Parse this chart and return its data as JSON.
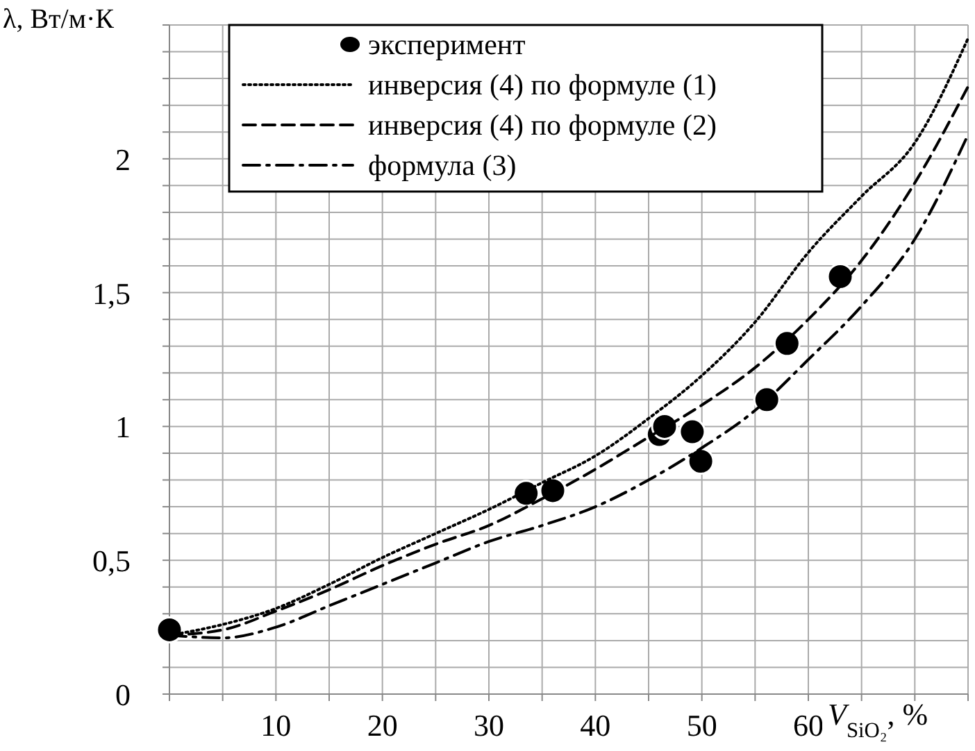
{
  "chart_data": {
    "type": "line",
    "xlabel": "V$_{SiO₂}$, %",
    "ylabel": "λ, Вт/м·К",
    "xlim": [
      0,
      75
    ],
    "ylim": [
      0,
      2.5
    ],
    "xticks": [
      {
        "value": 0,
        "label": null
      },
      {
        "value": 5,
        "label": null
      },
      10,
      {
        "value": 15,
        "label": null
      },
      20,
      {
        "value": 25,
        "label": null
      },
      30,
      {
        "value": 35,
        "label": null
      },
      40,
      {
        "value": 45,
        "label": null
      },
      50,
      {
        "value": 55,
        "label": null
      },
      60,
      {
        "value": 65,
        "label": null
      },
      {
        "value": 70,
        "label": null
      },
      {
        "value": 75,
        "label": null
      }
    ],
    "yticks": [
      0,
      {
        "value": 0.1,
        "label": null
      },
      {
        "value": 0.2,
        "label": null
      },
      {
        "value": 0.3,
        "label": null
      },
      {
        "value": 0.4,
        "label": null
      },
      {
        "value": 0.5,
        "label": "0,5"
      },
      {
        "value": 0.6,
        "label": null
      },
      {
        "value": 0.7,
        "label": null
      },
      {
        "value": 0.8,
        "label": null
      },
      {
        "value": 0.9,
        "label": null
      },
      1,
      {
        "value": 1.1,
        "label": null
      },
      {
        "value": 1.2,
        "label": null
      },
      {
        "value": 1.3,
        "label": null
      },
      {
        "value": 1.4,
        "label": null
      },
      {
        "value": 1.5,
        "label": "1,5"
      },
      {
        "value": 1.6,
        "label": null
      },
      {
        "value": 1.7,
        "label": null
      },
      {
        "value": 1.8,
        "label": null
      },
      {
        "value": 1.9,
        "label": null
      },
      2,
      {
        "value": 2.1,
        "label": null
      },
      {
        "value": 2.2,
        "label": null
      },
      {
        "value": 2.3,
        "label": null
      },
      {
        "value": 2.4,
        "label": null
      },
      {
        "value": 2.5,
        "label": null
      }
    ],
    "grid": true,
    "legend": "top",
    "series": [
      {
        "name": "эксперимент",
        "type": "scatter",
        "marker": "circle",
        "color": "#000000",
        "x": [
          0,
          33.5,
          36,
          46,
          46.5,
          49.1,
          49.9,
          56.1,
          58,
          63
        ],
        "values": [
          0.24,
          0.75,
          0.76,
          0.97,
          1.0,
          0.98,
          0.87,
          1.1,
          1.31,
          1.56
        ]
      },
      {
        "name": "инверсия (4) по формуле (1)",
        "line_style": "dotted",
        "color": "#000000",
        "x": [
          0,
          5,
          10,
          15,
          20,
          25,
          30,
          35,
          40,
          45,
          50,
          55,
          60,
          65,
          70,
          75
        ],
        "values": [
          0.22,
          0.26,
          0.32,
          0.41,
          0.51,
          0.6,
          0.69,
          0.79,
          0.89,
          1.03,
          1.19,
          1.39,
          1.65,
          1.86,
          2.06,
          2.45
        ]
      },
      {
        "name": "инверсия (4) по формуле (2)",
        "line_style": "dashed",
        "color": "#000000",
        "x": [
          0,
          5,
          10,
          15,
          20,
          25,
          30,
          35,
          40,
          45,
          50,
          55,
          60,
          65,
          70,
          75
        ],
        "values": [
          0.22,
          0.24,
          0.31,
          0.39,
          0.48,
          0.56,
          0.63,
          0.73,
          0.84,
          0.96,
          1.08,
          1.22,
          1.4,
          1.62,
          1.91,
          2.27
        ]
      },
      {
        "name": "формула (3)",
        "line_style": "dashdot",
        "color": "#000000",
        "x": [
          0,
          5,
          10,
          15,
          20,
          25,
          30,
          35,
          40,
          45,
          50,
          55,
          60,
          65,
          70,
          75
        ],
        "values": [
          0.22,
          0.21,
          0.25,
          0.33,
          0.41,
          0.49,
          0.57,
          0.63,
          0.7,
          0.8,
          0.92,
          1.06,
          1.25,
          1.45,
          1.7,
          2.09
        ]
      }
    ]
  }
}
